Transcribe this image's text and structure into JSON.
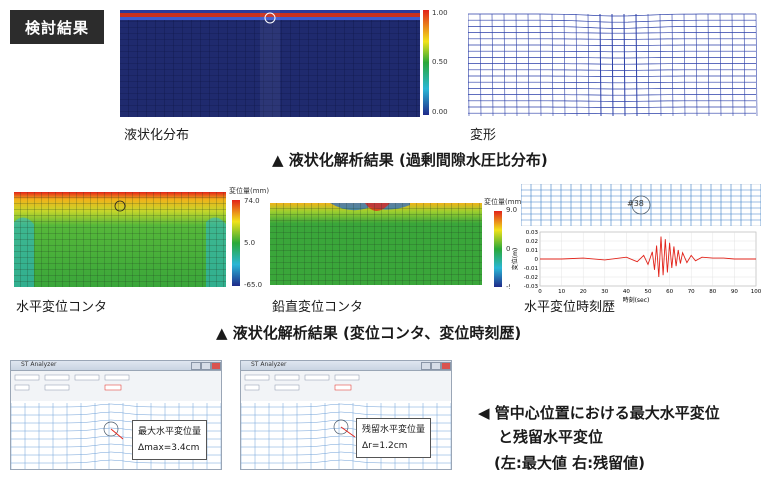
{
  "header": {
    "badge": "検討結果"
  },
  "section1": {
    "label_left": "液状化分布",
    "label_right": "変形",
    "scale_ticks": [
      "1.00",
      "0.50",
      "0.00"
    ],
    "caption": "▲ 液状化解析結果 (過剰間隙水圧比分布)"
  },
  "section2": {
    "label_horizontal": "水平変位コンタ",
    "label_vertical": "鉛直変位コンタ",
    "label_history": "水平変位時刻歴",
    "legend_h": {
      "title": "変位量(mm)",
      "ticks": [
        "74.0",
        "5.0",
        "-65.0"
      ]
    },
    "legend_v": {
      "title": "変位量(mm)",
      "ticks": [
        "9.0",
        "0.0",
        "-9.0"
      ]
    },
    "node_label": "#38",
    "caption": "▲ 液状化解析結果 (変位コンタ、変位時刻歴)",
    "colors": {
      "low": "#1f2a8a",
      "mid": "#2aa838",
      "high": "#e2231a"
    }
  },
  "chart_data": {
    "type": "line",
    "title": "",
    "xlabel": "時刻(sec)",
    "ylabel": "変位(m)",
    "xlim": [
      0,
      100
    ],
    "ylim": [
      -0.03,
      0.03
    ],
    "x_ticks": [
      "0",
      "10",
      "20",
      "30",
      "40",
      "50",
      "60",
      "70",
      "80",
      "90",
      "100"
    ],
    "y_ticks": [
      "0.03",
      "0.02",
      "0.01",
      "0",
      "-0.01",
      "-0.02",
      "-0.03"
    ],
    "series": [
      {
        "color": "#e2231a",
        "x": [
          0,
          10,
          20,
          30,
          40,
          45,
          48,
          50,
          52,
          53,
          54,
          55,
          56,
          57,
          58,
          59,
          60,
          61,
          62,
          63,
          64,
          65,
          66,
          68,
          70,
          72,
          75,
          80,
          85,
          90,
          95,
          100
        ],
        "y": [
          0,
          0,
          0.001,
          -0.001,
          0.002,
          -0.003,
          0.004,
          -0.006,
          0.008,
          -0.012,
          0.015,
          -0.02,
          0.025,
          -0.018,
          0.022,
          -0.015,
          0.018,
          -0.01,
          0.014,
          -0.008,
          0.01,
          -0.005,
          0.007,
          -0.004,
          0.004,
          -0.002,
          0.002,
          0.001,
          0.001,
          0,
          0,
          0
        ]
      }
    ]
  },
  "section3": {
    "window_title_1": "ST Analyzer",
    "window_title_2": "ST Analyzer",
    "callout_max_title": "最大水平変位量",
    "callout_max_value": "Δmax=3.4cm",
    "callout_res_title": "残留水平変位量",
    "callout_res_value": "Δr=1.2cm",
    "caption_line1": "◀ 管中心位置における最大水平変位",
    "caption_line2": "と残留水平変位",
    "caption_line3": "(左:最大値 右:残留値)"
  }
}
